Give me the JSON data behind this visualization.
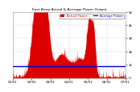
{
  "title": "East Array Actual & Average Power Output",
  "bg_color": "#ffffff",
  "plot_bg_color": "#ffffff",
  "grid_color": "#bbbbbb",
  "bar_color": "#dd0000",
  "avg_line_color": "#0000cc",
  "avg_line_value": 0.18,
  "ylim": [
    0,
    1.0
  ],
  "n_points": 400,
  "legend_labels": [
    "Actual Power",
    "Average Power"
  ],
  "legend_colors": [
    "#dd0000",
    "#0000cc"
  ],
  "x_tick_labels": [
    "01/01",
    "02/01",
    "03/01",
    "04/01",
    "05/01",
    "06/01",
    "07/01"
  ],
  "title_color": "#000000",
  "tick_color": "#000000",
  "tick_fontsize": 3.0,
  "ytick_labels": [
    "0",
    "1k",
    "2k",
    "3k",
    "4k",
    "5k"
  ],
  "ytick_vals": [
    0.0,
    0.2,
    0.4,
    0.6,
    0.8,
    1.0
  ]
}
